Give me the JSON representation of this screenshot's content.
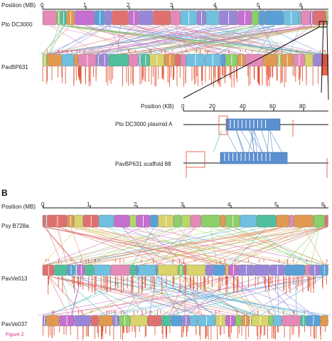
{
  "figure_caption": "Figure 2",
  "panel_b_letter": "B",
  "panel_a": {
    "axis_title": "Position (MB)",
    "ticks": [
      "0",
      "1",
      "2",
      "3",
      "4",
      "5",
      "6"
    ],
    "genome_top": "Pto DC3000",
    "genome_bottom": "PavBP631",
    "inset": {
      "axis_title": "Position (KB)",
      "ticks": [
        "0",
        "20",
        "40",
        "60",
        "80"
      ],
      "genome_top": "Pto DC3000 plasmid A",
      "genome_bottom": "PavBP631 scaffold 88"
    }
  },
  "panel_b": {
    "axis_title": "Position (MB)",
    "ticks": [
      "0",
      "1",
      "2",
      "3",
      "4",
      "5",
      "6"
    ],
    "genome_1": "Psy B728a",
    "genome_2": "PavVe013",
    "genome_3": "PavVe037"
  },
  "colors": {
    "palette": [
      "#e07070",
      "#d8d36a",
      "#8ccf6a",
      "#4fbf9c",
      "#5aa0d8",
      "#c56fd0",
      "#e09a50",
      "#70c0e0",
      "#9a86d8",
      "#e58ab8",
      "#b5d86a"
    ],
    "rearrangement": "#e04a2a",
    "plasmid_block": "#5b8fcf",
    "zoom_lines": "#111111"
  }
}
